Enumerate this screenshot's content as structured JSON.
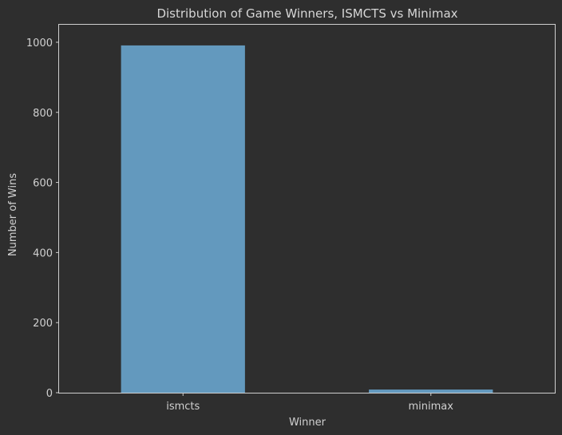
{
  "chart_data": {
    "type": "bar",
    "title": "Distribution of Game Winners, ISMCTS vs Minimax",
    "xlabel": "Winner",
    "ylabel": "Number of Wins",
    "categories": [
      "ismcts",
      "minimax"
    ],
    "values": [
      991,
      9
    ],
    "ylim": [
      0,
      1050
    ],
    "yticks": [
      0,
      200,
      400,
      600,
      800,
      1000
    ],
    "grid": false,
    "colors": {
      "bar": "#6399be",
      "background": "#2e2e2e",
      "text": "#d0d0d0"
    }
  }
}
